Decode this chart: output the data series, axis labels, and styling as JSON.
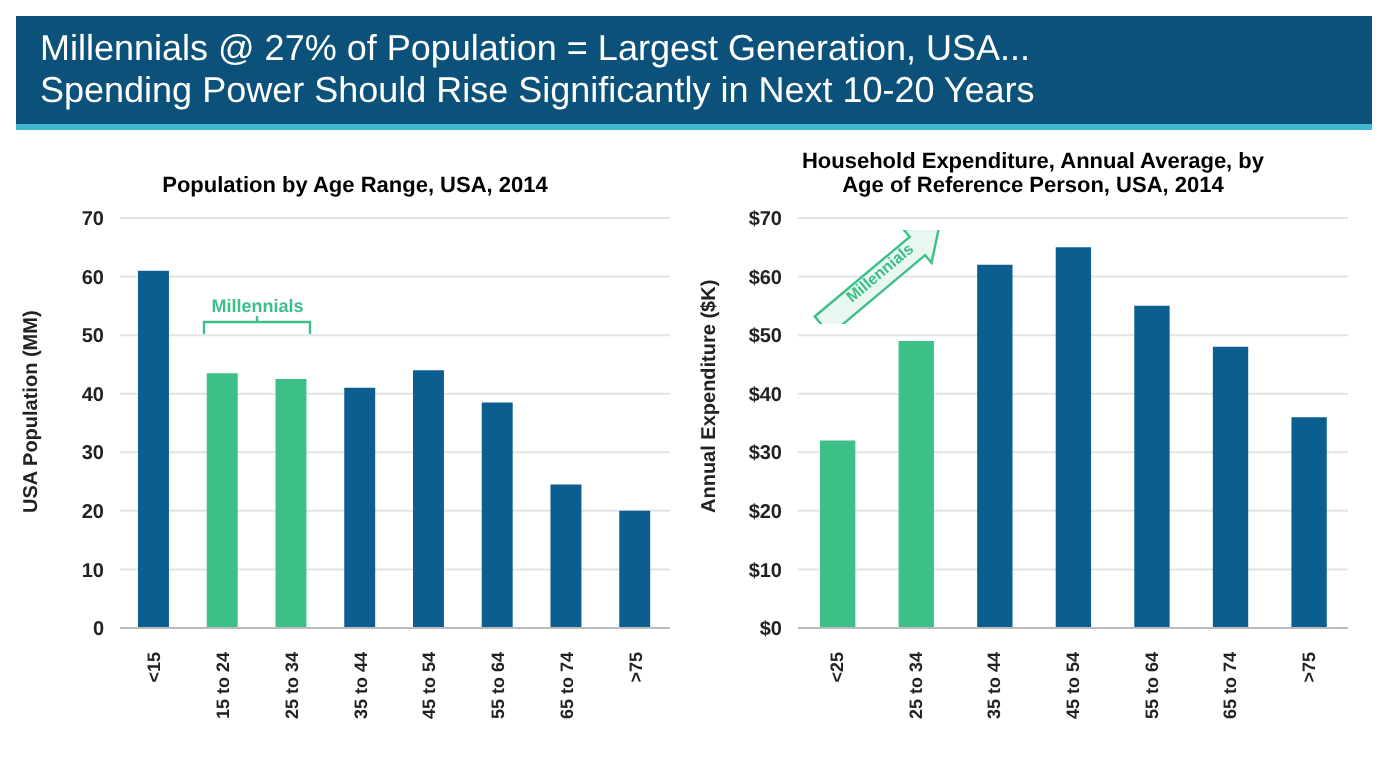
{
  "chart_data": [
    {
      "type": "bar",
      "title": "Millennials @ 27% of Population = Largest Generation, USA...\nSpending Power Should Rise Significantly in Next 10-20 Years",
      "subtitle": "Population by Age Range, USA, 2014",
      "ylabel": "USA Population (MM)",
      "categories": [
        "<15",
        "15 to 24",
        "25 to 34",
        "35 to 44",
        "45 to 54",
        "55 to 64",
        "65 to 74",
        ">75"
      ],
      "values": [
        61,
        43.5,
        42.5,
        41,
        44,
        38.5,
        24.5,
        20
      ],
      "colors": [
        "#0b5e8f",
        "#3dbf88",
        "#3dbf88",
        "#0b5e8f",
        "#0b5e8f",
        "#0b5e8f",
        "#0b5e8f",
        "#0b5e8f"
      ],
      "ylim": [
        0,
        70
      ],
      "yticks": [
        0,
        10,
        20,
        30,
        40,
        50,
        60,
        70
      ],
      "grid": "y",
      "annotations": [
        "Millennials"
      ]
    },
    {
      "type": "bar",
      "subtitle": "Household Expenditure, Annual Average, by\nAge of Reference Person, USA, 2014",
      "ylabel": "Annual Expenditure ($K)",
      "categories": [
        "<25",
        "25 to 34",
        "35 to 44",
        "45 to 54",
        "55 to 64",
        "65 to 74",
        ">75"
      ],
      "values": [
        32,
        49,
        62,
        65,
        55,
        48,
        36
      ],
      "colors": [
        "#3dbf88",
        "#3dbf88",
        "#0b5e8f",
        "#0b5e8f",
        "#0b5e8f",
        "#0b5e8f",
        "#0b5e8f"
      ],
      "ylim": [
        0,
        70
      ],
      "yticks": [
        {
          "value": 0,
          "label": "$0"
        },
        {
          "value": 10,
          "label": "$10"
        },
        {
          "value": 20,
          "label": "$20"
        },
        {
          "value": 30,
          "label": "$30"
        },
        {
          "value": 40,
          "label": "$40"
        },
        {
          "value": 50,
          "label": "$50"
        },
        {
          "value": 60,
          "label": "$60"
        },
        {
          "value": 70,
          "label": "$70"
        }
      ],
      "grid": "y",
      "annotations": [
        "Millennials"
      ]
    }
  ]
}
